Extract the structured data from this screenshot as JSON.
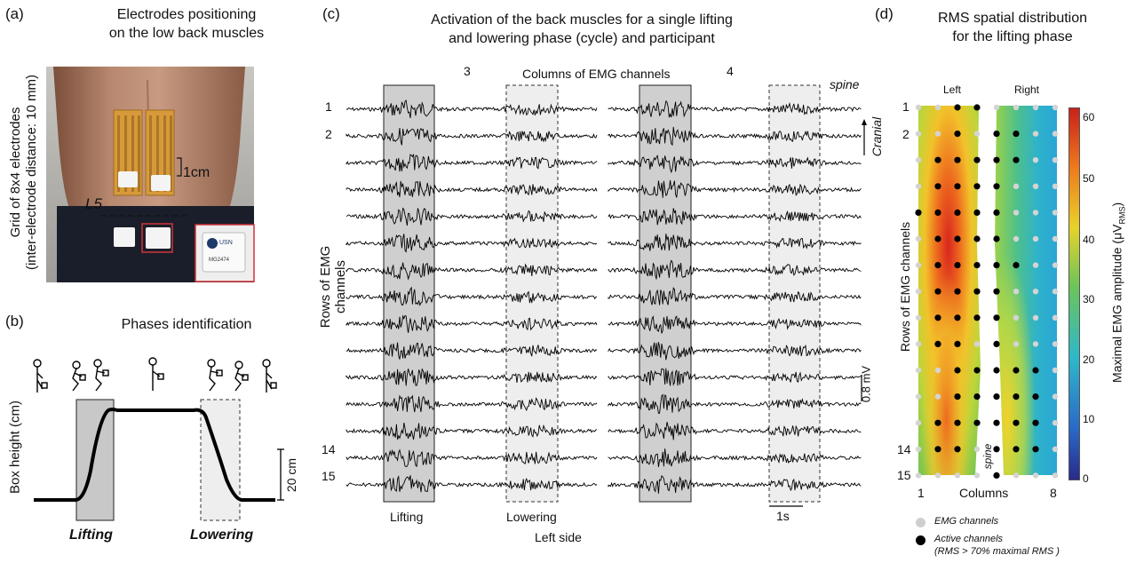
{
  "panel_a": {
    "label": "(a)",
    "title": [
      "Electrodes positioning",
      "on the low back muscles"
    ],
    "side_label": [
      "Grid of 8x4 electrodes",
      "(inter-electrode distance: 10 mm)"
    ],
    "scale_text": "1cm",
    "l5_text": "L5",
    "inset_text": [
      "USN",
      "MG2474"
    ]
  },
  "panel_b": {
    "label": "(b)",
    "title": "Phases identification",
    "ylabel": "Box height (cm)",
    "scale_text": "20 cm",
    "lifting": "Lifting",
    "lowering": "Lowering"
  },
  "panel_c": {
    "label": "(c)",
    "title": [
      "Activation of the back muscles for a single lifting",
      "and lowering phase (cycle) and participant"
    ],
    "col_label_3": "3",
    "col_label_4": "4",
    "columns_label": "Columns of EMG channels",
    "spine": "spine",
    "cranial": "Cranial",
    "rows_label": "Rows of EMG channels",
    "row_labels": [
      "1",
      "2",
      "14",
      "15"
    ],
    "mv_scale": "0.8 mV",
    "time_scale": "1s",
    "lifting": "Lifting",
    "lowering": "Lowering",
    "side": "Left side",
    "n_channels": 15
  },
  "panel_d": {
    "label": "(d)",
    "title": [
      "RMS spatial distribution",
      "for the lifting phase"
    ],
    "left": "Left",
    "right": "Right",
    "rows_label": "Rows of EMG channels",
    "row_labels": [
      "1",
      "2",
      "14",
      "15"
    ],
    "columns_label": "Columns",
    "col_start": "1",
    "col_end": "8",
    "spine": "spine",
    "colorbar_label": "Maximal EMG amplitude (μV",
    "colorbar_sub": "RMS",
    "colorbar_ticks": [
      "0",
      "10",
      "20",
      "30",
      "40",
      "50",
      "60"
    ],
    "legend_emg": "EMG channels",
    "legend_active": "Active channels",
    "legend_active_note": "(RMS > 70% maximal RMS )",
    "colors": {
      "low": "#2a2a8a",
      "mid": "#2fb8c8",
      "high": "#c8201c"
    },
    "active_left": [
      [
        0,
        0,
        1,
        1
      ],
      [
        0,
        0,
        1,
        0
      ],
      [
        0,
        1,
        1,
        1
      ],
      [
        0,
        1,
        1,
        1
      ],
      [
        1,
        1,
        1,
        1
      ],
      [
        0,
        1,
        1,
        1
      ],
      [
        0,
        1,
        1,
        1
      ],
      [
        0,
        1,
        1,
        1
      ],
      [
        0,
        1,
        1,
        1
      ],
      [
        0,
        1,
        1,
        0
      ],
      [
        0,
        0,
        1,
        1
      ],
      [
        0,
        0,
        1,
        1
      ],
      [
        0,
        1,
        1,
        1
      ],
      [
        0,
        1,
        1,
        0
      ],
      [
        0,
        0,
        0,
        0
      ]
    ],
    "active_right": [
      [
        0,
        0,
        0,
        0
      ],
      [
        1,
        1,
        0,
        0
      ],
      [
        1,
        1,
        0,
        0
      ],
      [
        1,
        0,
        0,
        0
      ],
      [
        1,
        0,
        0,
        0
      ],
      [
        1,
        0,
        0,
        0
      ],
      [
        1,
        1,
        0,
        0
      ],
      [
        1,
        0,
        0,
        0
      ],
      [
        1,
        0,
        0,
        0
      ],
      [
        1,
        0,
        0,
        0
      ],
      [
        1,
        1,
        1,
        0
      ],
      [
        1,
        1,
        1,
        0
      ],
      [
        1,
        1,
        1,
        0
      ],
      [
        1,
        1,
        1,
        0
      ],
      [
        1,
        0,
        0,
        0
      ]
    ]
  }
}
